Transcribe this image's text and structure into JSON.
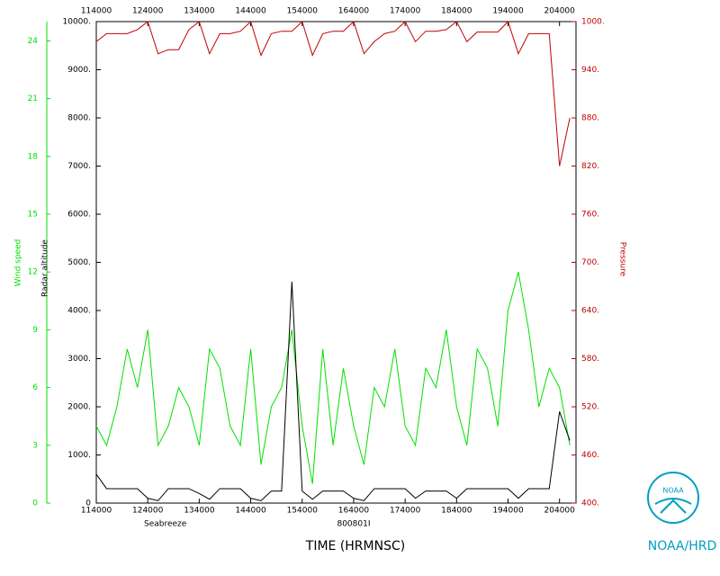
{
  "chart_data": {
    "type": "line",
    "xlabel": "TIME (HRMNSC)",
    "left_note": "Seabreeze",
    "center_note": "800801I",
    "credit": "NOAA/HRD",
    "logo_text": "NOAA",
    "x": [
      114000,
      116000,
      118000,
      120000,
      122000,
      124000,
      126000,
      128000,
      130000,
      132000,
      134000,
      136000,
      138000,
      140000,
      142000,
      144000,
      146000,
      148000,
      150000,
      152000,
      154000,
      156000,
      158000,
      160000,
      162000,
      164000,
      166000,
      168000,
      170000,
      172000,
      174000,
      176000,
      178000,
      180000,
      182000,
      184000,
      186000,
      188000,
      190000,
      192000,
      194000,
      196000,
      198000,
      200000,
      202000,
      204000,
      206000
    ],
    "xlim": [
      114000,
      207200
    ],
    "xticks": [
      114000,
      124000,
      134000,
      144000,
      154000,
      164000,
      174000,
      184000,
      194000,
      204000
    ],
    "ylim": [
      0,
      10000
    ],
    "yticks": [
      0,
      {
        "value": 1000,
        "label": "1000."
      },
      {
        "value": 2000,
        "label": "2000."
      },
      {
        "value": 3000,
        "label": "3000."
      },
      {
        "value": 4000,
        "label": "4000."
      },
      {
        "value": 5000,
        "label": "5000."
      },
      {
        "value": 6000,
        "label": "6000."
      },
      {
        "value": 7000,
        "label": "7000."
      },
      {
        "value": 8000,
        "label": "8000."
      },
      {
        "value": 9000,
        "label": "9000."
      },
      {
        "value": 10000,
        "label": "10000."
      }
    ],
    "y3lim": [
      0,
      25
    ],
    "y3ticks": [
      0,
      3,
      6,
      9,
      12,
      15,
      18,
      21,
      24
    ],
    "y2lim": [
      400,
      1000
    ],
    "y2ticks": [
      {
        "value": 400,
        "label": "400."
      },
      {
        "value": 460,
        "label": "460."
      },
      {
        "value": 520,
        "label": "520."
      },
      {
        "value": 580,
        "label": "580."
      },
      {
        "value": 640,
        "label": "640."
      },
      {
        "value": 700,
        "label": "700."
      },
      {
        "value": 760,
        "label": "760."
      },
      {
        "value": 820,
        "label": "820."
      },
      {
        "value": 880,
        "label": "880."
      },
      {
        "value": 940,
        "label": "940."
      },
      {
        "value": 1000,
        "label": "1000."
      }
    ],
    "series": [
      {
        "name": "Wind speed",
        "color": "#00e000",
        "axis": "y3",
        "values": [
          4,
          3,
          5,
          8,
          6,
          9,
          3,
          4,
          6,
          5,
          3,
          8,
          7,
          4,
          3,
          8,
          2,
          5,
          6,
          9,
          4,
          1,
          8,
          3,
          7,
          4,
          2,
          6,
          5,
          8,
          4,
          3,
          7,
          6,
          9,
          5,
          3,
          8,
          7,
          4,
          10,
          12,
          9,
          5,
          7,
          6,
          3
        ]
      },
      {
        "name": "Radar altitude",
        "color": "#000000",
        "axis": "y",
        "values": [
          600,
          300,
          300,
          300,
          300,
          100,
          50,
          300,
          300,
          300,
          200,
          80,
          300,
          300,
          300,
          100,
          50,
          250,
          250,
          4600,
          250,
          80,
          250,
          250,
          250,
          100,
          50,
          300,
          300,
          300,
          300,
          100,
          250,
          250,
          250,
          100,
          300,
          300,
          300,
          300,
          300,
          100,
          300,
          300,
          300,
          1900,
          1300
        ]
      },
      {
        "name": "Pressure",
        "color": "#c00000",
        "axis": "y2",
        "values": [
          975,
          985,
          985,
          985,
          990,
          1000,
          960,
          965,
          965,
          990,
          1000,
          960,
          985,
          985,
          988,
          1000,
          958,
          985,
          988,
          988,
          1000,
          958,
          985,
          988,
          988,
          1000,
          960,
          975,
          985,
          988,
          1000,
          975,
          988,
          988,
          990,
          1000,
          975,
          987,
          987,
          987,
          1000,
          960,
          985,
          985,
          985,
          820,
          880
        ]
      }
    ]
  }
}
